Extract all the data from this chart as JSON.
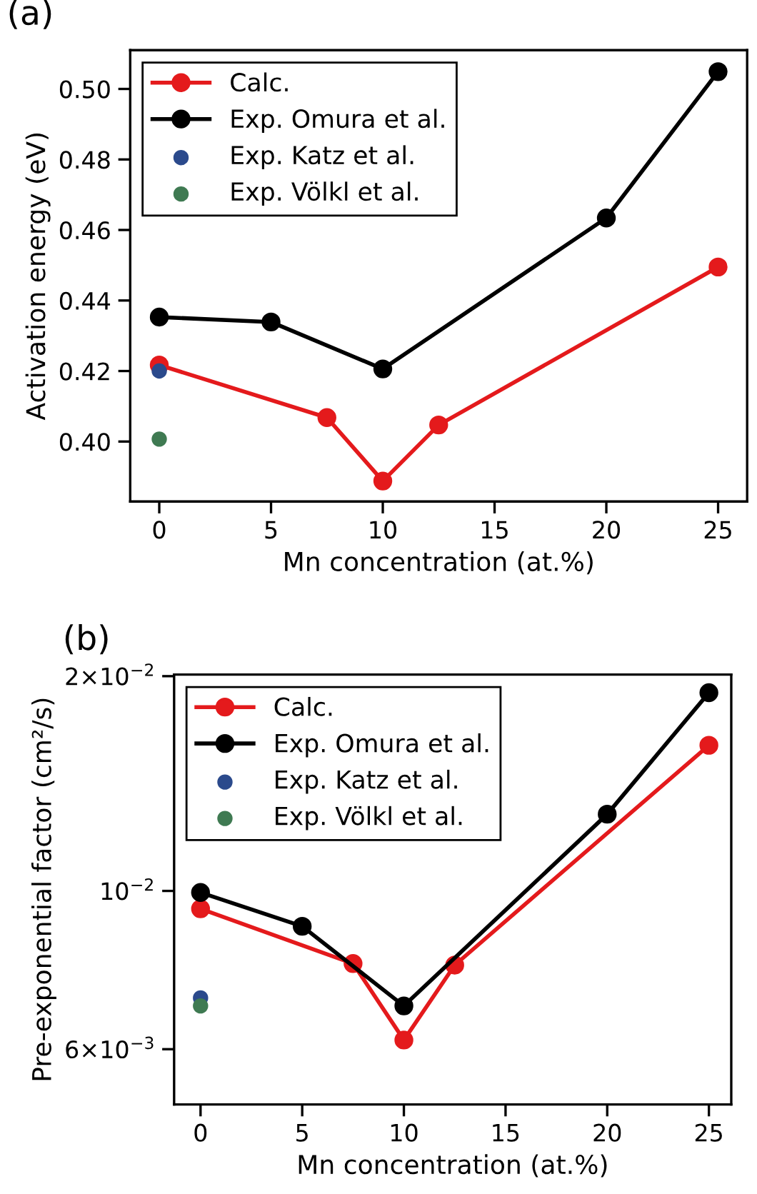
{
  "chart_data": [
    {
      "type": "line",
      "title": "(a)",
      "xlabel": "Mn concentration (at.%)",
      "ylabel": "Activation energy (eV)",
      "xlim": [
        -1.3,
        26.3
      ],
      "xticks": [
        0,
        5,
        10,
        15,
        20,
        25
      ],
      "ylim": [
        0.383,
        0.511
      ],
      "yticks": [
        {
          "value": 0.4,
          "label": "0.40"
        },
        {
          "value": 0.42,
          "label": "0.42"
        },
        {
          "value": 0.44,
          "label": "0.44"
        },
        {
          "value": 0.46,
          "label": "0.46"
        },
        {
          "value": 0.48,
          "label": "0.48"
        },
        {
          "value": 0.5,
          "label": "0.50"
        }
      ],
      "legend": "top left",
      "marker": "circle",
      "grid": false,
      "series": [
        {
          "name": "Calc.",
          "color": "#e41a1c",
          "x": [
            0,
            7.5,
            10,
            12.5,
            25
          ],
          "values": [
            0.4217,
            0.4068,
            0.3888,
            0.4047,
            0.4495
          ]
        },
        {
          "name": "Exp. Omura et al.",
          "color": "#000000",
          "x": [
            0,
            5,
            10,
            20,
            25
          ],
          "values": [
            0.4353,
            0.4339,
            0.4206,
            0.4634,
            0.5049
          ]
        },
        {
          "name": "Exp. Katz et al.",
          "type": "scatter",
          "color": "#2b4a8c",
          "x": [
            0
          ],
          "values": [
            0.42
          ]
        },
        {
          "name": "Exp. Völkl et al.",
          "type": "scatter",
          "color": "#3f7a52",
          "x": [
            0
          ],
          "values": [
            0.4007
          ]
        }
      ]
    },
    {
      "type": "line",
      "title": "(b)",
      "xlabel": "Mn concentration (at.%)",
      "ylabel": "Pre-exponential factor (cm²/s)",
      "log": "y",
      "xlim": [
        -1.3,
        26.1
      ],
      "xticks": [
        0,
        5,
        10,
        15,
        20,
        25
      ],
      "ylim": [
        0.00502,
        0.0201
      ],
      "yticks": [
        {
          "value": 0.006,
          "label": "6×10$^{−3}$"
        },
        {
          "value": 0.01,
          "label": "10$^{−2}$"
        },
        {
          "value": 0.02,
          "label": "2×10$^{−2}$"
        }
      ],
      "legend": "top left",
      "marker": "circle",
      "grid": false,
      "series": [
        {
          "name": "Calc.",
          "color": "#e41a1c",
          "x": [
            0,
            7.5,
            10,
            12.5,
            25
          ],
          "values": [
            0.00944,
            0.00791,
            0.00618,
            0.00787,
            0.016
          ]
        },
        {
          "name": "Exp. Omura et al.",
          "color": "#000000",
          "x": [
            0,
            5,
            10,
            20,
            25
          ],
          "values": [
            0.00995,
            0.00892,
            0.0069,
            0.01281,
            0.01896
          ]
        },
        {
          "name": "Exp. Katz et al.",
          "type": "scatter",
          "color": "#2b4a8c",
          "x": [
            0
          ],
          "values": [
            0.00708
          ]
        },
        {
          "name": "Exp. Völkl et al.",
          "type": "scatter",
          "color": "#3f7a52",
          "x": [
            0
          ],
          "values": [
            0.0069
          ]
        }
      ]
    }
  ]
}
